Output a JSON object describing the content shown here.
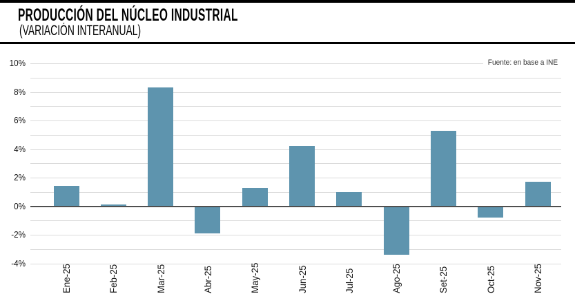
{
  "colors": {
    "bar": "#5e94ae",
    "gridline": "#dadada",
    "axis": "#4f4f4f",
    "rule": "#000000",
    "text": "#111111",
    "source_text": "#333333",
    "background": "#ffffff"
  },
  "chart_data": {
    "type": "bar",
    "title": "PRODUCCIÓN DEL NÚCLEO INDUSTRIAL",
    "subtitle": "(VARIACIÓN INTERANUAL)",
    "source": "Fuente: en base a INE",
    "categories": [
      "Ene-25",
      "Feb-25",
      "Mar-25",
      "Abr-25",
      "May-25",
      "Jun-25",
      "Jul-25",
      "Ago-25",
      "Set-25",
      "Oct-25",
      "Nov-25"
    ],
    "values": [
      1.4,
      0.1,
      8.3,
      -1.9,
      1.3,
      4.2,
      1.0,
      -3.4,
      5.3,
      -0.8,
      1.7
    ],
    "unit": "%",
    "xlabel": "",
    "ylabel": "",
    "ylim": [
      -4,
      10
    ],
    "yticks": [
      {
        "value": 10,
        "label": "10%"
      },
      {
        "value": 8,
        "label": "8%"
      },
      {
        "value": 6,
        "label": "6%"
      },
      {
        "value": 4,
        "label": "4%"
      },
      {
        "value": 2,
        "label": "2%"
      },
      {
        "value": 0,
        "label": "0%"
      },
      {
        "value": -2,
        "label": "-2%"
      },
      {
        "value": -4,
        "label": "-4%"
      }
    ],
    "gridline_step": 1,
    "grid": true,
    "legend": false,
    "bar_orientation": "vertical",
    "x_tick_rotation_deg": 90
  }
}
